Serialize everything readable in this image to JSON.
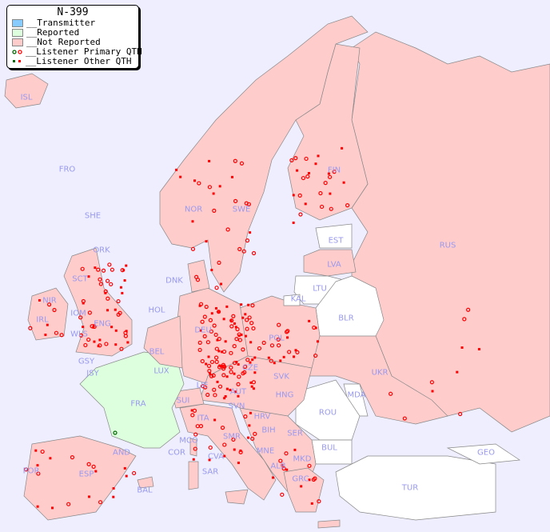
{
  "title": "N-399",
  "legend": [
    {
      "label": "__Transmitter",
      "color": "#88ccff"
    },
    {
      "label": "__Reported",
      "color": "#ddffdd"
    },
    {
      "label": "__Not Reported",
      "color": "#ffcccc"
    },
    {
      "label": "__Listener Primary QTH",
      "marker": "circle",
      "colors": [
        "#006600",
        "#ff0000"
      ]
    },
    {
      "label": "__Listener Other QTH",
      "marker": "square",
      "colors": [
        "#006600",
        "#ff0000"
      ]
    }
  ],
  "colors": {
    "background": "#eeeeff",
    "not_reported": "#ffcccc",
    "reported": "#ddffdd",
    "no_data": "#ffffff",
    "label": "#9999ee",
    "marker": "#ff0000"
  },
  "countries": [
    "ISL",
    "FRO",
    "SHE",
    "ORK",
    "NOR",
    "SWE",
    "FIN",
    "EST",
    "LVA",
    "LTU",
    "RUS",
    "DNK",
    "KAL",
    "BLR",
    "HOL",
    "IRL",
    "NIR",
    "SCT",
    "IOM",
    "ENG",
    "WLS",
    "GSY",
    "JSY",
    "BEL",
    "LUX",
    "FRA",
    "DEU",
    "POL",
    "CZE",
    "SVK",
    "UKR",
    "AUT",
    "HNG",
    "MDA",
    "SUI",
    "LIE",
    "ROU",
    "SVN",
    "HRV",
    "ITA",
    "BIH",
    "SER",
    "MCO",
    "COR",
    "SMR",
    "BUL",
    "GEO",
    "AND",
    "MNE",
    "MKD",
    "ALB",
    "CVA",
    "SAR",
    "POR",
    "ESP",
    "BAL",
    "GRC",
    "TUR"
  ]
}
